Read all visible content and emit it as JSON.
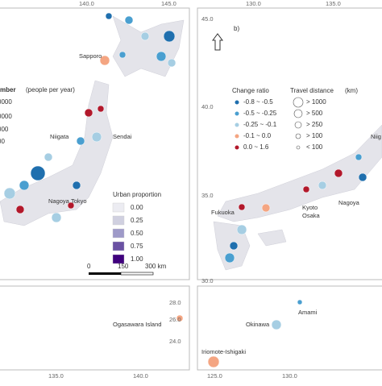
{
  "panel_a": {
    "lon_labels": [
      "140.0",
      "145.0"
    ],
    "legend_title": "mber",
    "legend_unit": "(people per year)",
    "legend_values": [
      "0000",
      "0000",
      "000",
      "00"
    ],
    "cities": [
      "Sapporo",
      "Niigata",
      "Sendai",
      "Nagoya",
      "Tokyo"
    ],
    "urban_title": "Urban proportion",
    "urban_values": [
      "0.00",
      "0.25",
      "0.50",
      "0.75",
      "1.00"
    ],
    "scale": [
      "0",
      "150",
      "300 km"
    ]
  },
  "panel_a_inset": {
    "lat_labels": [
      "28.0",
      "26.0",
      "24.0"
    ],
    "island": "Ogasawara Island",
    "lon_labels": [
      "135.0",
      "140.0"
    ]
  },
  "panel_b": {
    "tag": "b)",
    "lat_labels": [
      "45.0",
      "40.0",
      "35.0",
      "30.0"
    ],
    "lon_labels": [
      "130.0",
      "135.0"
    ],
    "change_title": "Change ratio",
    "change_values": [
      "-0.8 ~ -0.5",
      "-0.5 ~ -0.25",
      "-0.25 ~ -0.1",
      "-0.1 ~ 0.0",
      "0.0 ~ 1.6"
    ],
    "distance_title": "Travel distance",
    "distance_unit": "(km)",
    "distance_values": [
      "> 1000",
      "> 500",
      "> 250",
      "> 100",
      "< 100"
    ],
    "cities": [
      "Niig",
      "Fukuoka",
      "Kyoto",
      "Osaka",
      "Nagoya"
    ]
  },
  "panel_b_inset": {
    "islands": [
      "Amami",
      "Okinawa",
      "Iriomote-Ishigaki"
    ],
    "lon_labels": [
      "125.0",
      "130.0"
    ]
  }
}
